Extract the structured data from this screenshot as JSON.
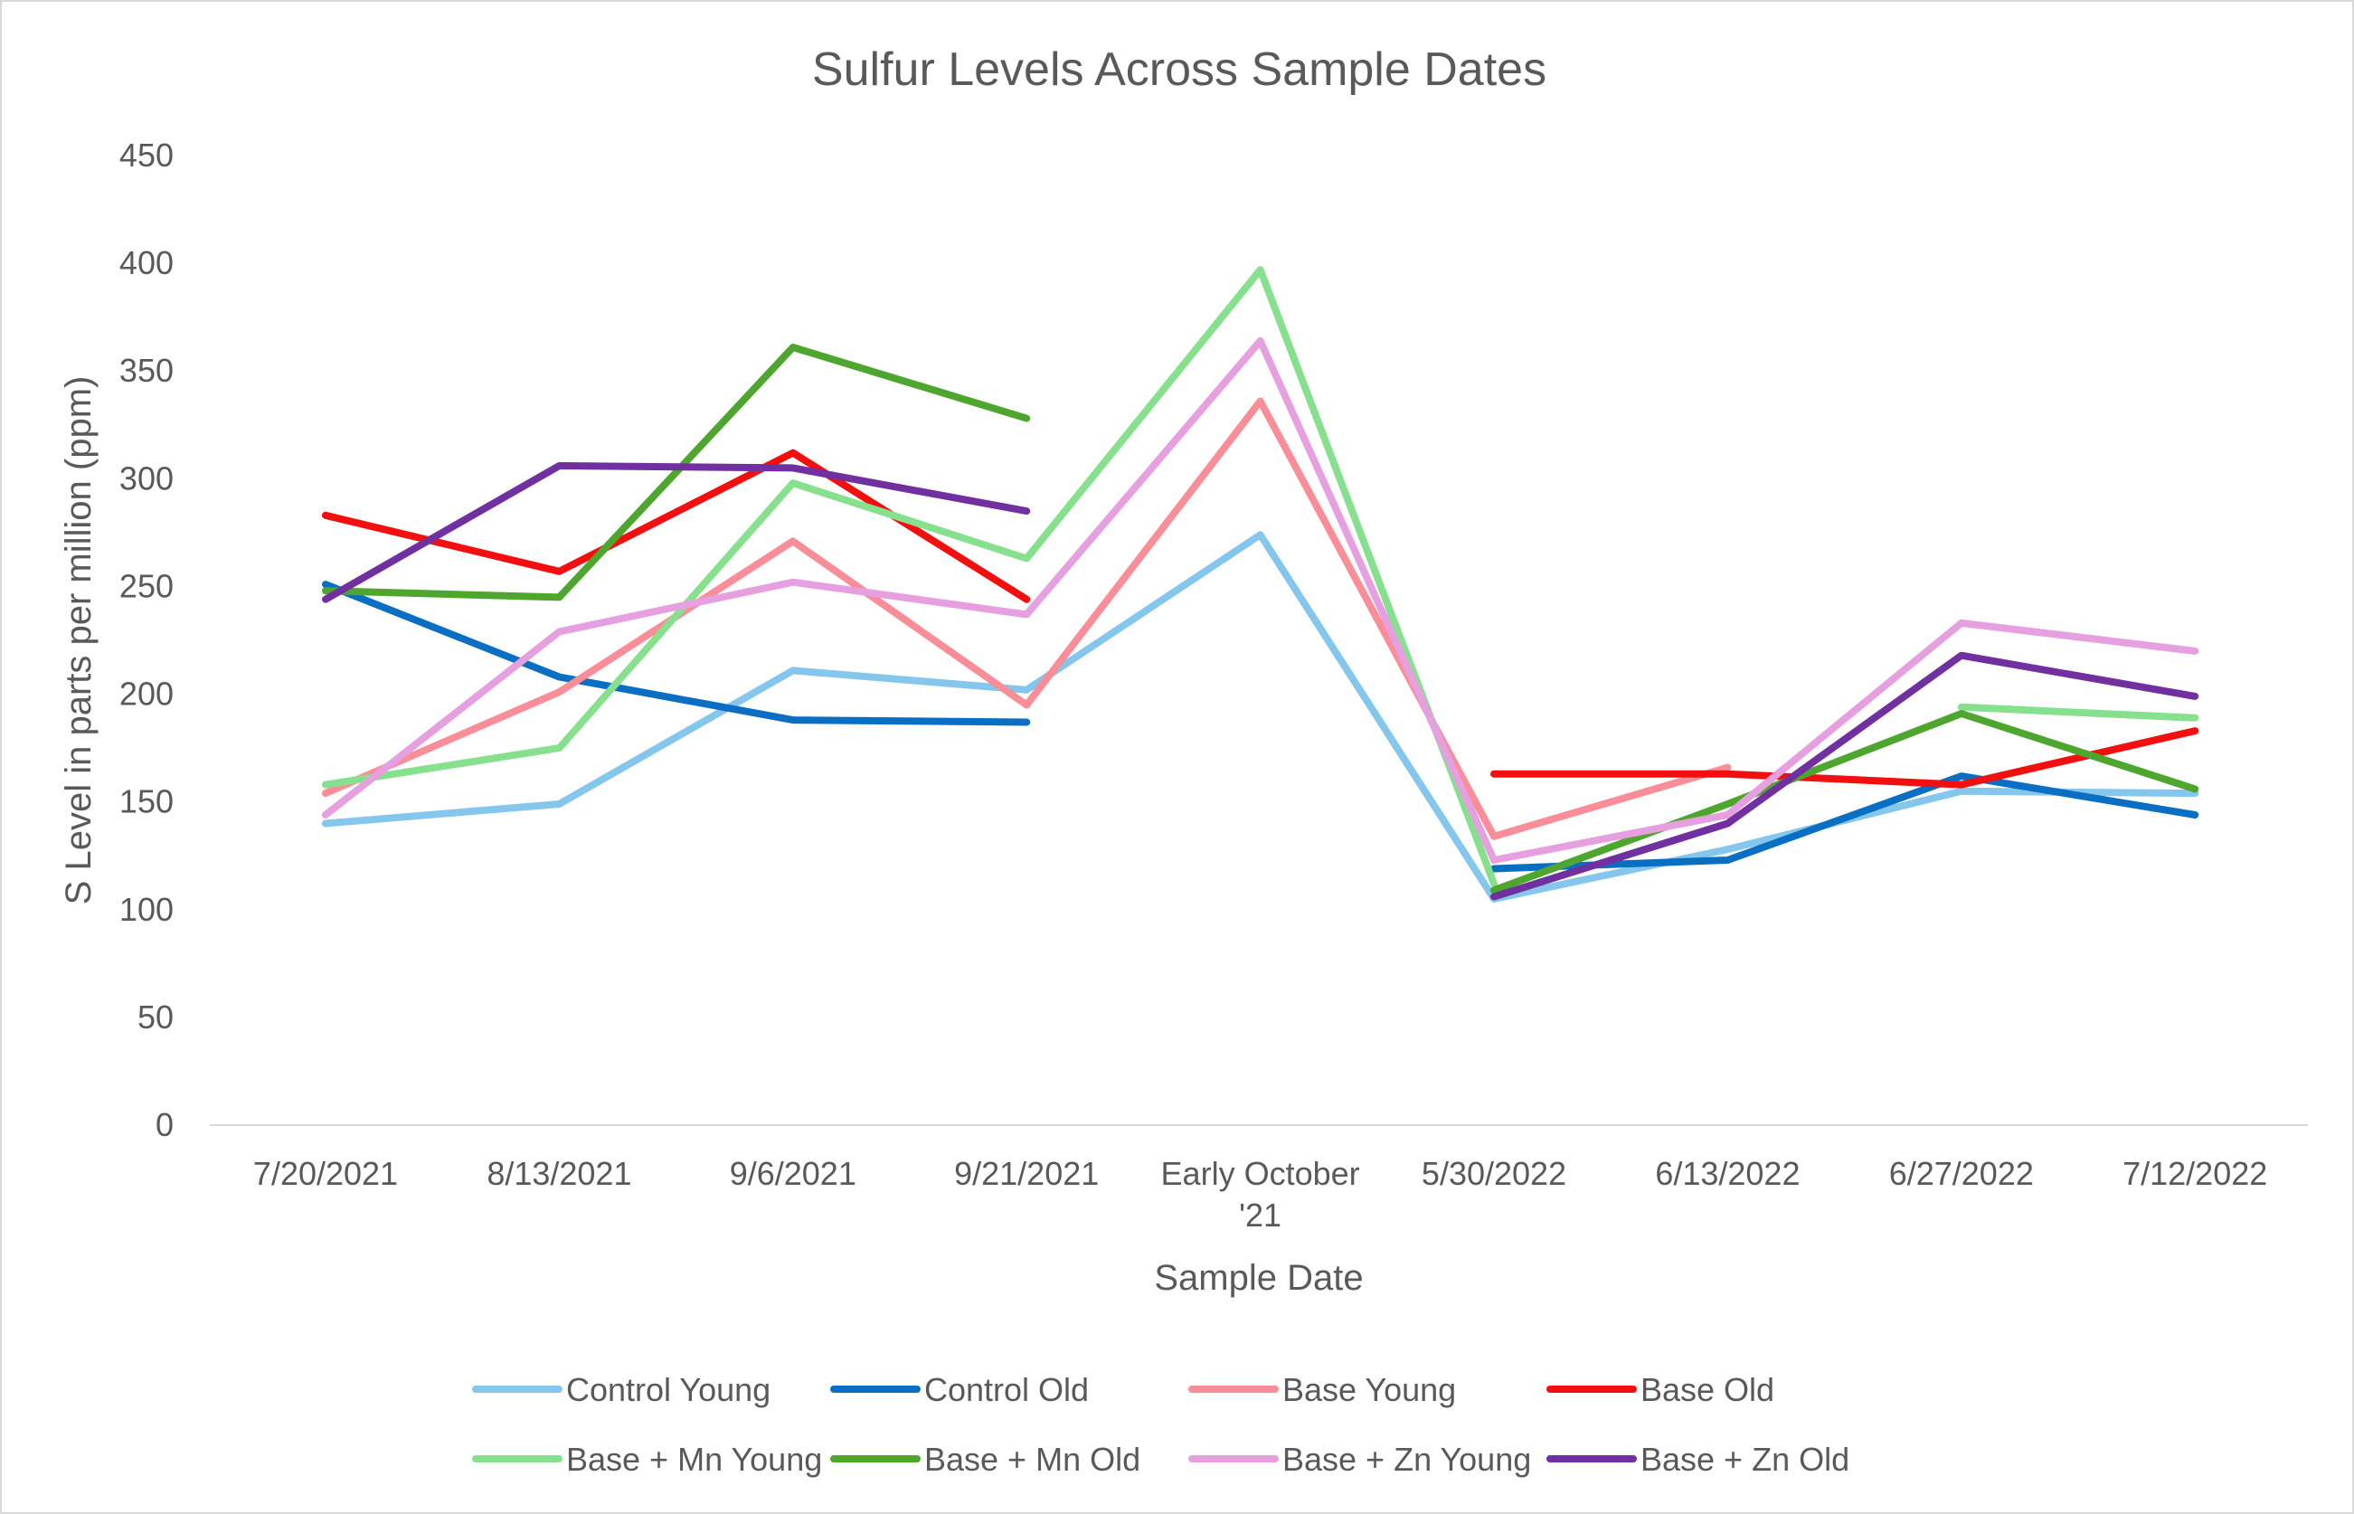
{
  "chart_data": {
    "type": "line",
    "title": "Sulfur Levels Across Sample Dates",
    "xlabel": "Sample Date",
    "ylabel": "S Level in parts per million (ppm)",
    "ylim": [
      0,
      450
    ],
    "ytick_step": 50,
    "grid": false,
    "legend_position": "bottom",
    "categories": [
      "7/20/2021",
      "8/13/2021",
      "9/6/2021",
      "9/21/2021",
      "Early October '21",
      "5/30/2022",
      "6/13/2022",
      "6/27/2022",
      "7/12/2022"
    ],
    "category_lines": [
      [
        "7/20/2021"
      ],
      [
        "8/13/2021"
      ],
      [
        "9/6/2021"
      ],
      [
        "9/21/2021"
      ],
      [
        "Early October",
        "'21"
      ],
      [
        "5/30/2022"
      ],
      [
        "6/13/2022"
      ],
      [
        "6/27/2022"
      ],
      [
        "7/12/2022"
      ]
    ],
    "series": [
      {
        "name": "Control Young",
        "color": "#85c6ec",
        "values": [
          140,
          149,
          211,
          202,
          274,
          105,
          128,
          155,
          154
        ]
      },
      {
        "name": "Control Old",
        "color": "#0a6fc2",
        "values": [
          251,
          208,
          188,
          187,
          null,
          119,
          123,
          162,
          144
        ]
      },
      {
        "name": "Base Young",
        "color": "#f98d98",
        "values": [
          154,
          201,
          271,
          195,
          336,
          134,
          166,
          null,
          null
        ]
      },
      {
        "name": "Base Old",
        "color": "#f20f0f",
        "values": [
          283,
          257,
          312,
          244,
          null,
          163,
          163,
          158,
          183
        ]
      },
      {
        "name": "Base + Mn Young",
        "color": "#86e08e",
        "values": [
          158,
          175,
          298,
          263,
          397,
          112,
          null,
          194,
          189
        ]
      },
      {
        "name": "Base + Mn Old",
        "color": "#4ea62e",
        "values": [
          248,
          245,
          361,
          328,
          null,
          109,
          149,
          191,
          156
        ]
      },
      {
        "name": "Base + Zn Young",
        "color": "#e6a0e0",
        "values": [
          144,
          229,
          252,
          237,
          364,
          123,
          144,
          233,
          220
        ]
      },
      {
        "name": "Base + Zn Old",
        "color": "#7030a0",
        "values": [
          244,
          306,
          305,
          285,
          null,
          106,
          140,
          218,
          199
        ]
      }
    ]
  }
}
